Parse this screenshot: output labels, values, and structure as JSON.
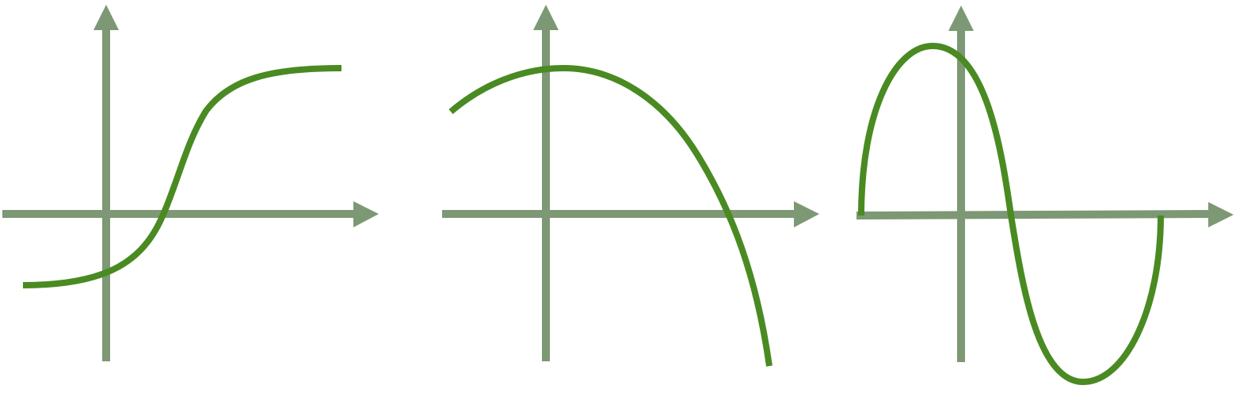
{
  "colors": {
    "axis": "#7d9874",
    "curve": "#4a8a22",
    "background": "#ffffff"
  },
  "panels": [
    {
      "name": "panel-sigmoid",
      "curve_type": "s-shaped"
    },
    {
      "name": "panel-parabola",
      "curve_type": "downward-parabola"
    },
    {
      "name": "panel-sine",
      "curve_type": "sine-wave"
    }
  ]
}
